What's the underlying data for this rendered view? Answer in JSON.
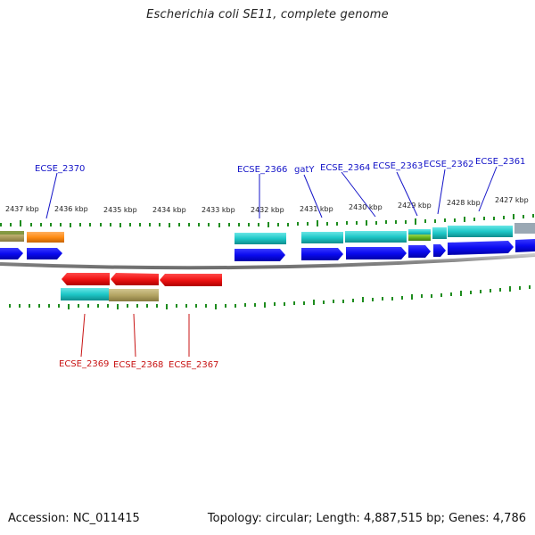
{
  "title": "Escherichia coli SE11, complete genome",
  "footer": {
    "accession": "Accession: NC_011415",
    "summary": "Topology: circular; Length: 4,887,515 bp; Genes: 4,786"
  },
  "ticks": [
    "2437 kbp",
    "2436 kbp",
    "2435 kbp",
    "2434 kbp",
    "2433 kbp",
    "2432 kbp",
    "2431 kbp",
    "2430 kbp",
    "2429 kbp",
    "2428 kbp",
    "2427 kbp"
  ],
  "gene_labels_top": [
    "ECSE_2370",
    "ECSE_2366",
    "gatY",
    "ECSE_2364",
    "ECSE_2363",
    "ECSE_2362",
    "ECSE_2361"
  ],
  "gene_labels_bottom": [
    "ECSE_2369",
    "ECSE_2368",
    "ECSE_2367"
  ],
  "colors": {
    "forward_cds": "#0a0af0",
    "reverse_cds": "#f01414",
    "cog_cyan": "#1ec8c8",
    "cog_olive": "#b4a564",
    "cog_orange": "#ff8c14",
    "cog_green": "#64b41e",
    "tick_green": "#1e8c1e",
    "label_blue": "#1414c8",
    "label_red": "#c81414"
  }
}
